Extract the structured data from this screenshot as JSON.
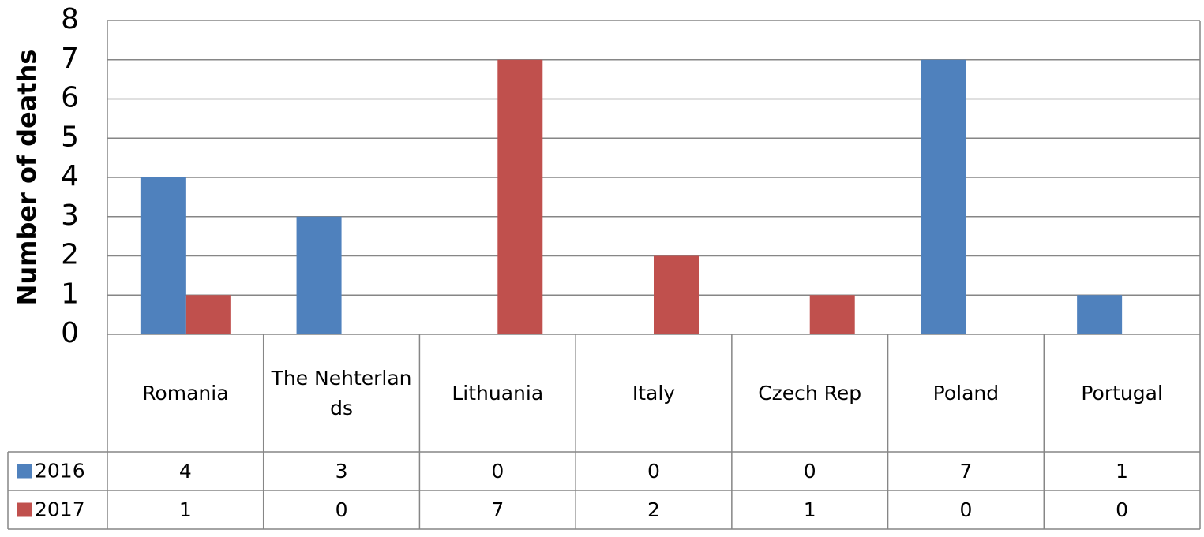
{
  "chart_data": {
    "type": "bar",
    "y_label": "Number of deaths",
    "categories": [
      "Romania",
      "The Nehterlands",
      "Lithuania",
      "Italy",
      "Czech Rep",
      "Poland",
      "Portugal"
    ],
    "series": [
      {
        "name": "2016",
        "color": "#4f81bd",
        "values": [
          4,
          3,
          0,
          0,
          0,
          7,
          1
        ]
      },
      {
        "name": "2017",
        "color": "#c0504d",
        "values": [
          1,
          0,
          7,
          2,
          1,
          0,
          0
        ]
      }
    ],
    "ylim": [
      0,
      8
    ],
    "yticks": [
      0,
      1,
      2,
      3,
      4,
      5,
      6,
      7,
      8
    ],
    "grid": true,
    "data_table": true
  }
}
